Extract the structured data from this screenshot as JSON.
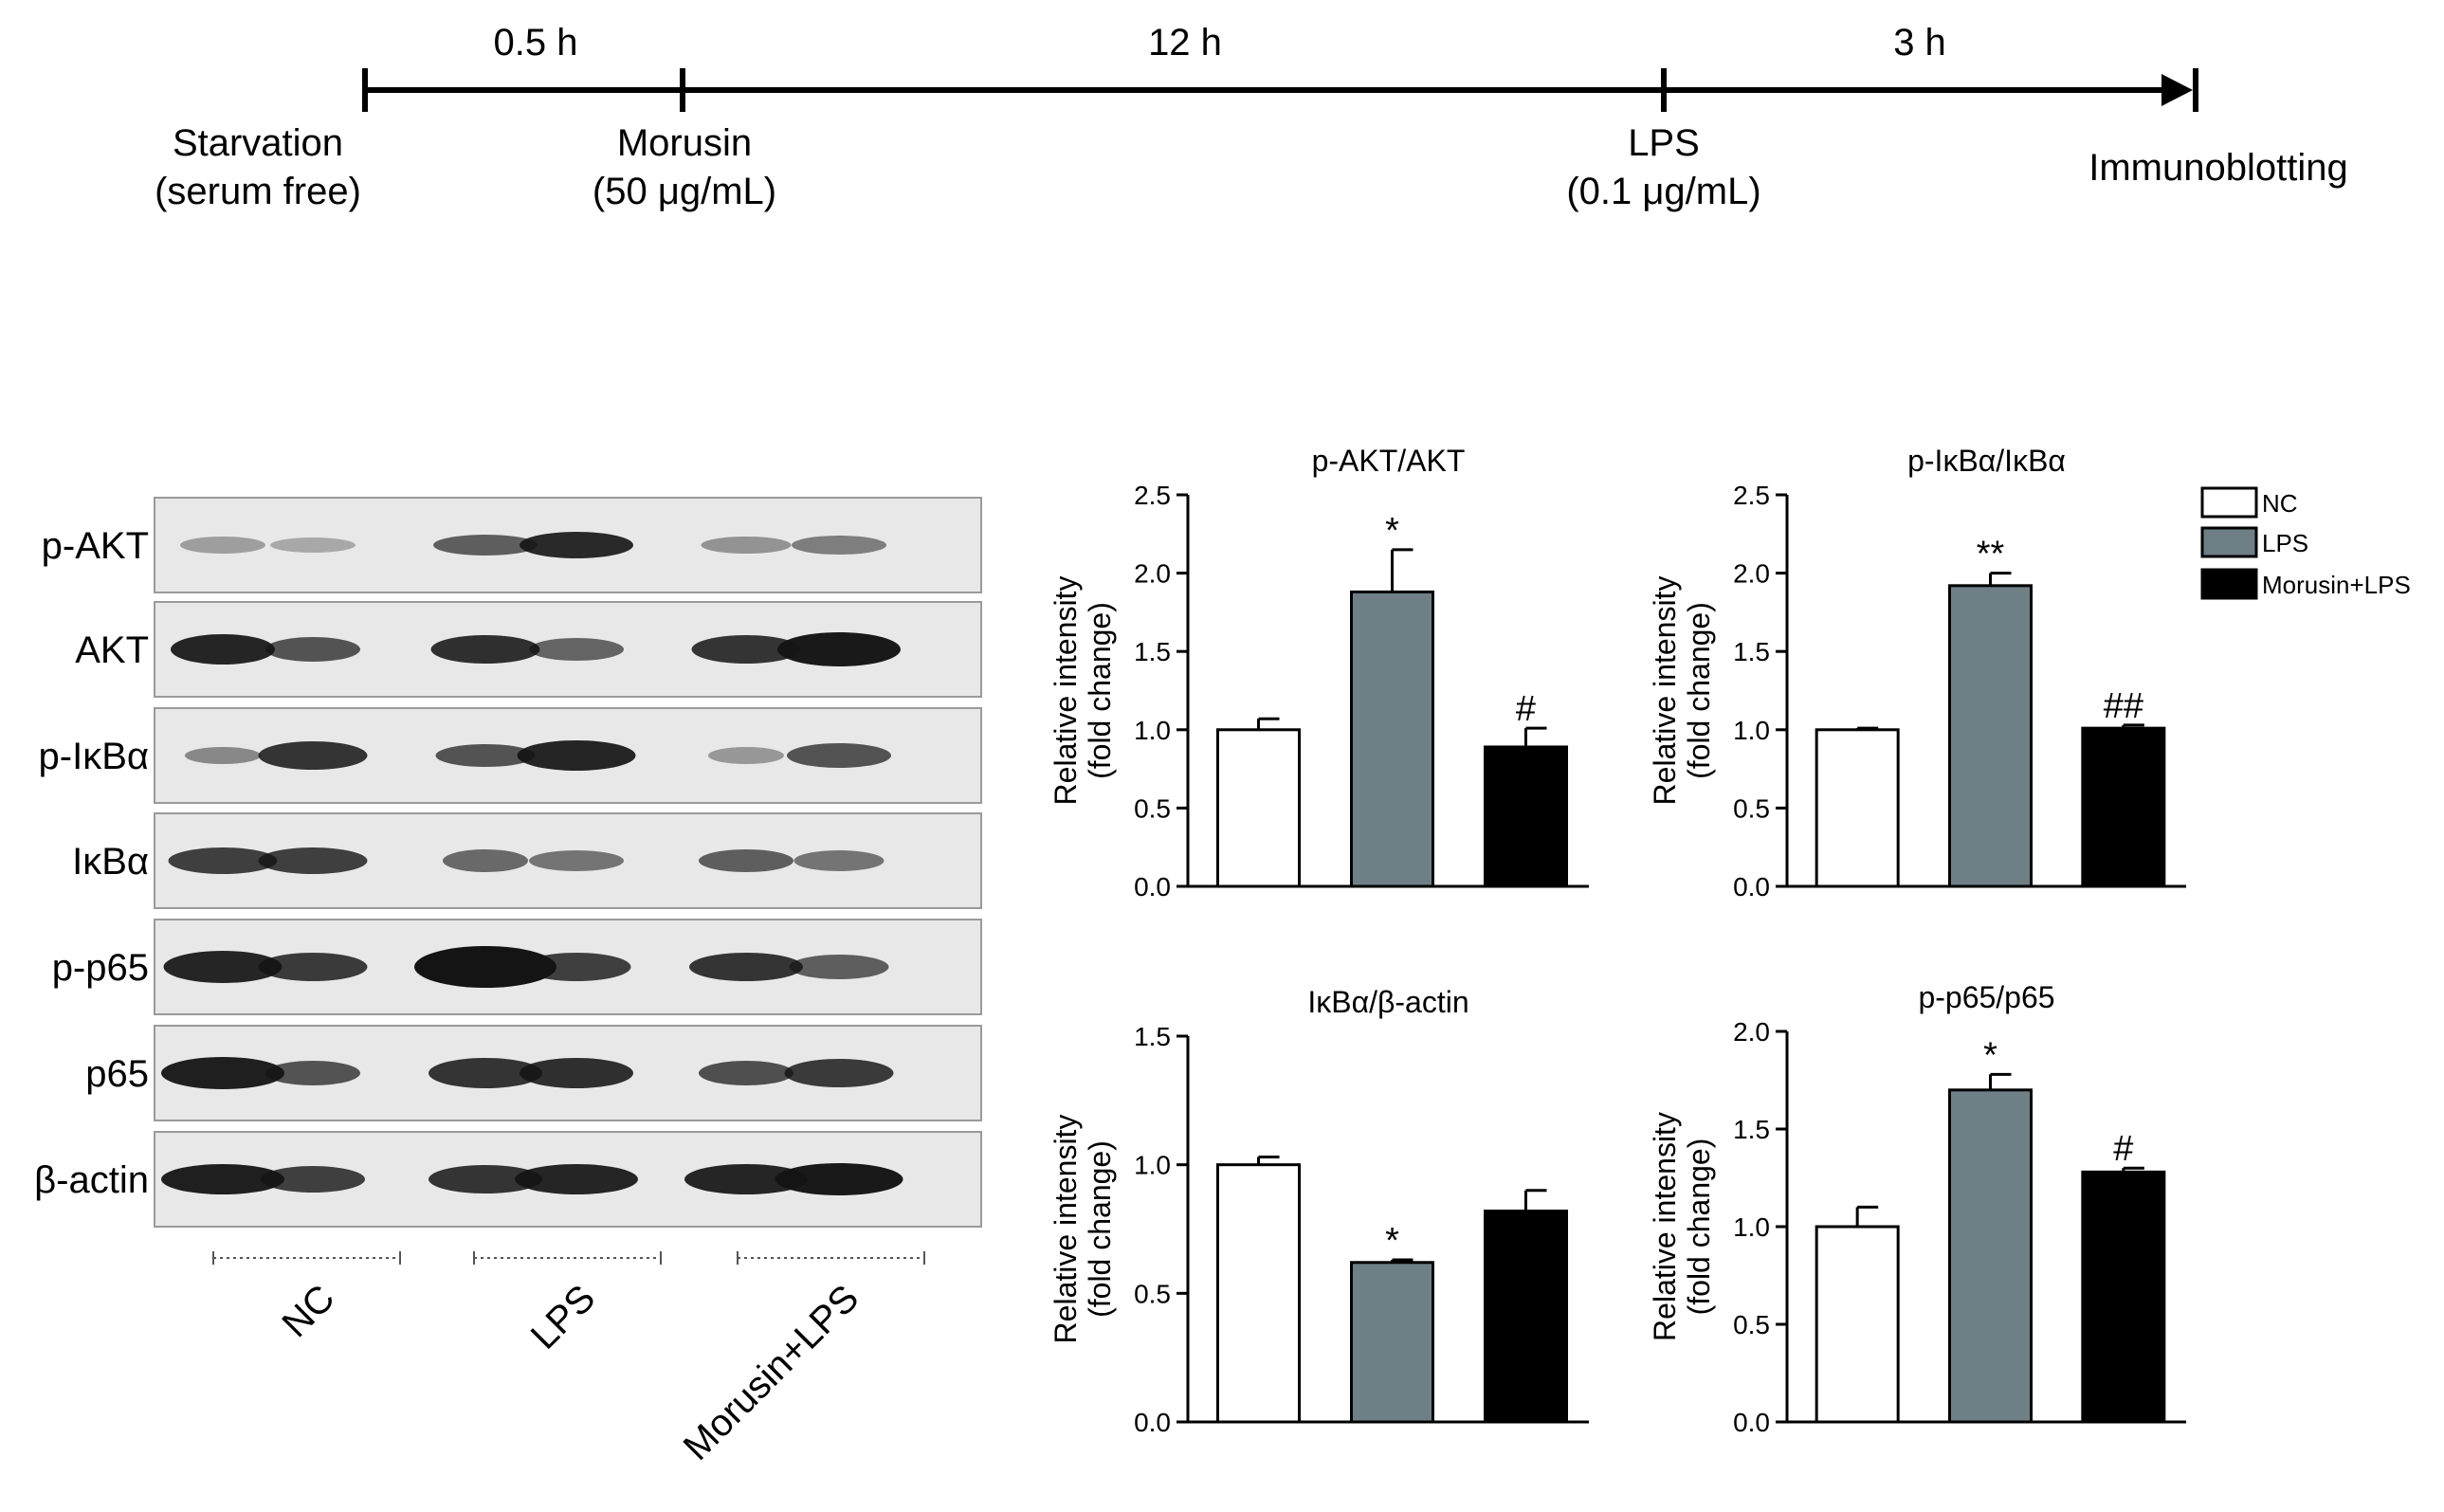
{
  "colors": {
    "nc": "#ffffff",
    "lps": "#6f7f86",
    "morusin": "#000000",
    "axis": "#000000",
    "blot_bg": "#e8e8e8",
    "band": "#141414"
  },
  "timeline": {
    "durations": [
      "0.5 h",
      "12 h",
      "3 h"
    ],
    "events": [
      {
        "line1": "Starvation",
        "line2": "(serum free)"
      },
      {
        "line1": "Morusin",
        "line2": "(50 μg/mL)"
      },
      {
        "line1": "LPS",
        "line2": "(0.1 μg/mL)"
      },
      {
        "line1": "Immunoblotting",
        "line2": ""
      }
    ]
  },
  "blot": {
    "proteins": [
      "p-AKT",
      "AKT",
      "p-IκBα",
      "IκBα",
      "p-p65",
      "p65",
      "β-actin"
    ],
    "groups": [
      "NC",
      "LPS",
      "Morusin+LPS"
    ]
  },
  "legend": {
    "entries": [
      "NC",
      "LPS",
      "Morusin+LPS"
    ]
  },
  "chart_data": [
    {
      "type": "bar",
      "title": "p-AKT/AKT",
      "ylabel": "Relative intensity",
      "ylabel2": "(fold change)",
      "categories": [
        "NC",
        "LPS",
        "Morusin+LPS"
      ],
      "values": [
        1.0,
        1.88,
        0.89
      ],
      "errors": [
        0.07,
        0.27,
        0.12
      ],
      "annotations": [
        "",
        "*",
        "#"
      ],
      "ylim": [
        0,
        2.5
      ],
      "ticks": [
        "0.0",
        "0.5",
        "1.0",
        "1.5",
        "2.0",
        "2.5"
      ]
    },
    {
      "type": "bar",
      "title": "p-IκBα/IκBα",
      "ylabel": "Relative intensity",
      "ylabel2": "(fold change)",
      "categories": [
        "NC",
        "LPS",
        "Morusin+LPS"
      ],
      "values": [
        1.0,
        1.92,
        1.01
      ],
      "errors": [
        0.01,
        0.08,
        0.02
      ],
      "annotations": [
        "",
        "**",
        "##"
      ],
      "ylim": [
        0,
        2.5
      ],
      "ticks": [
        "0.0",
        "0.5",
        "1.0",
        "1.5",
        "2.0",
        "2.5"
      ]
    },
    {
      "type": "bar",
      "title": "IκBα/β-actin",
      "ylabel": "Relative intensity",
      "ylabel2": "(fold change)",
      "categories": [
        "NC",
        "LPS",
        "Morusin+LPS"
      ],
      "values": [
        1.0,
        0.62,
        0.82
      ],
      "errors": [
        0.03,
        0.01,
        0.08
      ],
      "annotations": [
        "",
        "*",
        ""
      ],
      "ylim": [
        0,
        1.5
      ],
      "ticks": [
        "0.0",
        "0.5",
        "1.0",
        "1.5"
      ]
    },
    {
      "type": "bar",
      "title": "p-p65/p65",
      "ylabel": "Relative intensity",
      "ylabel2": "(fold change)",
      "categories": [
        "NC",
        "LPS",
        "Morusin+LPS"
      ],
      "values": [
        1.0,
        1.7,
        1.28
      ],
      "errors": [
        0.1,
        0.08,
        0.02
      ],
      "annotations": [
        "",
        "*",
        "#"
      ],
      "ylim": [
        0,
        2.0
      ],
      "ticks": [
        "0.0",
        "0.5",
        "1.0",
        "1.5",
        "2.0"
      ]
    }
  ]
}
